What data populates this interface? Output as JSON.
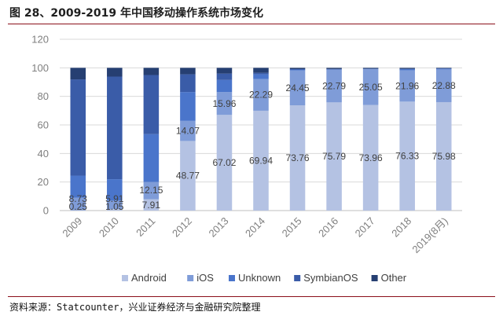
{
  "title": "图 28、2009-2019 年中国移动操作系统市场变化",
  "source": "资料来源：Statcounter，兴业证券经济与金融研究院整理",
  "chart_data": {
    "type": "bar",
    "stacked": true,
    "categories": [
      "2009",
      "2010",
      "2011",
      "2012",
      "2013",
      "2014",
      "2015",
      "2016",
      "2017",
      "2018",
      "2019(8月)"
    ],
    "ylim": [
      0,
      120
    ],
    "yticks": [
      "0",
      "20",
      "40",
      "60",
      "80",
      "100",
      "120"
    ],
    "grid": true,
    "legend_position": "bottom",
    "series": [
      {
        "name": "Android",
        "color": "#b4c2e3",
        "values": [
          0.25,
          1.05,
          7.91,
          48.77,
          67.02,
          69.94,
          73.76,
          75.79,
          73.96,
          76.33,
          75.98
        ],
        "labels": [
          "0.25",
          "1.05",
          "7.91",
          "48.77",
          "67.02",
          "69.94",
          "73.76",
          "75.79",
          "73.96",
          "76.33",
          "75.98"
        ]
      },
      {
        "name": "iOS",
        "color": "#7f9cd8",
        "values": [
          8.73,
          5.91,
          12.15,
          14.07,
          15.96,
          22.29,
          24.45,
          22.79,
          25.05,
          21.96,
          22.88
        ],
        "labels": [
          "8.73",
          "5.91",
          "12.15",
          "14.07",
          "15.96",
          "22.29",
          "24.45",
          "22.79",
          "25.05",
          "21.96",
          "22.88"
        ]
      },
      {
        "name": "Unknown",
        "color": "#4a75cb",
        "values": [
          15.5,
          15.0,
          33.5,
          20.2,
          8.5,
          3.2,
          0.6,
          0.4,
          0.3,
          0.9,
          0.6
        ],
        "labels": []
      },
      {
        "name": "SymbianOS",
        "color": "#3a5ca8",
        "values": [
          67.4,
          71.9,
          41.4,
          12.4,
          4.5,
          1.1,
          0.3,
          0.2,
          0.1,
          0.1,
          0.1
        ],
        "labels": []
      },
      {
        "name": "Other",
        "color": "#263f72",
        "values": [
          8.12,
          6.14,
          5.04,
          4.56,
          4.02,
          3.47,
          0.89,
          0.82,
          0.59,
          0.71,
          0.44
        ],
        "labels": []
      }
    ]
  }
}
